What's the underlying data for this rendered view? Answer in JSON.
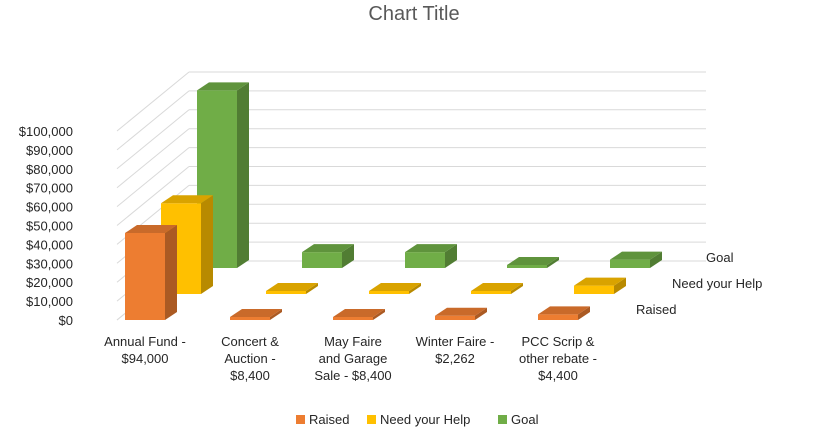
{
  "chart_data": {
    "type": "bar",
    "title": "Chart Title",
    "categories": [
      [
        "Annual Fund -",
        "$94,000"
      ],
      [
        "Concert &",
        "Auction -",
        "$8,400"
      ],
      [
        "May Faire",
        "and Garage",
        "Sale - $8,400"
      ],
      [
        "Winter Faire -",
        "$2,262"
      ],
      [
        "PCC Scrip &",
        "other rebate -",
        "$4,400"
      ]
    ],
    "series": [
      {
        "name": "Raised",
        "color": "#ED7D31",
        "values": [
          46000,
          0,
          0,
          2262,
          3000
        ]
      },
      {
        "name": "Need your Help",
        "color": "#FFC000",
        "values": [
          48000,
          0,
          0,
          0,
          4400
        ]
      },
      {
        "name": "Goal",
        "color": "#70AD47",
        "values": [
          94000,
          8400,
          8400,
          0,
          4400
        ]
      }
    ],
    "ylim": [
      0,
      100000
    ],
    "yticks": [
      0,
      10000,
      20000,
      30000,
      40000,
      50000,
      60000,
      70000,
      80000,
      90000,
      100000
    ],
    "ytick_labels": [
      "$0",
      "$10,000",
      "$20,000",
      "$30,000",
      "$40,000",
      "$50,000",
      "$60,000",
      "$70,000",
      "$80,000",
      "$90,000",
      "$100,000"
    ],
    "depth_labels": [
      "Raised",
      "Need your Help",
      "Goal"
    ],
    "legend_position": "bottom",
    "grid": true
  }
}
